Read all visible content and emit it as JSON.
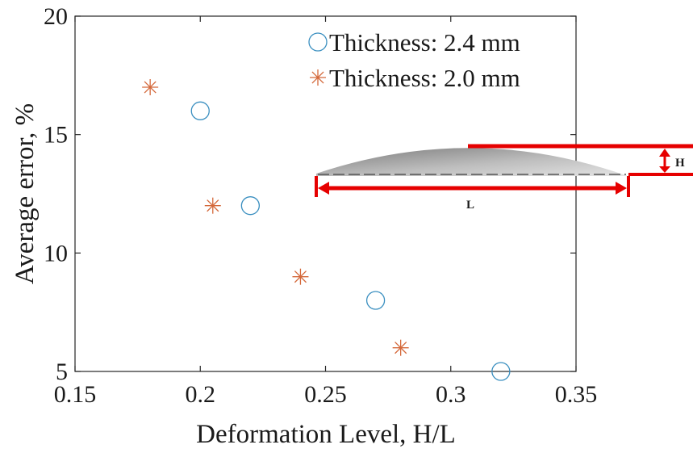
{
  "chart_data": {
    "type": "scatter",
    "xlabel": "Deformation Level, H/L",
    "ylabel": "Average error, %",
    "xlim": [
      0.15,
      0.35
    ],
    "ylim": [
      5,
      20
    ],
    "xticks": [
      "0.15",
      "0.2",
      "0.25",
      "0.3",
      "0.35"
    ],
    "yticks": [
      "5",
      "10",
      "15",
      "20"
    ],
    "grid": false,
    "legend_position": "top-right",
    "series": [
      {
        "name": "Thickness: 2.4 mm",
        "marker": "circle",
        "color": "#3a8fc0",
        "points": [
          {
            "x": 0.2,
            "y": 16
          },
          {
            "x": 0.22,
            "y": 12
          },
          {
            "x": 0.27,
            "y": 8
          },
          {
            "x": 0.32,
            "y": 5
          }
        ]
      },
      {
        "name": "Thickness: 2.0 mm",
        "marker": "asterisk",
        "color": "#d4683a",
        "points": [
          {
            "x": 0.18,
            "y": 17
          },
          {
            "x": 0.205,
            "y": 12
          },
          {
            "x": 0.24,
            "y": 9
          },
          {
            "x": 0.28,
            "y": 6
          }
        ]
      }
    ],
    "inset": {
      "height_label": "H",
      "length_label": "L",
      "dimension_color": "#e60000"
    }
  }
}
